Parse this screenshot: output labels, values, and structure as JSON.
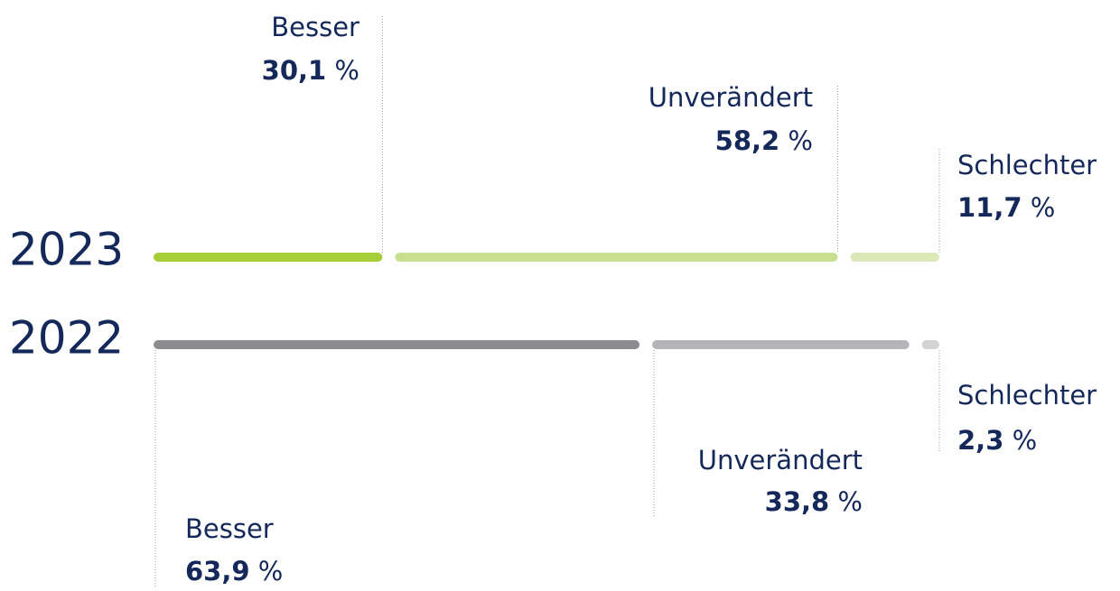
{
  "chart_data": {
    "type": "stacked-bar",
    "categories": [
      "2023",
      "2022"
    ],
    "series": [
      {
        "name": "Besser",
        "colors": [
          "#a6ce39",
          "#8c8c8f"
        ],
        "values": [
          30.1,
          63.9
        ],
        "value_labels": [
          "30,1 %",
          "63,9 %"
        ]
      },
      {
        "name": "Unverändert",
        "colors": [
          "#c8df8f",
          "#b5b5b9"
        ],
        "values": [
          58.2,
          33.8
        ],
        "value_labels": [
          "58,2 %",
          "33,8 %"
        ]
      },
      {
        "name": "Schlechter",
        "colors": [
          "#dbe9b8",
          "#d3d3d6"
        ],
        "values": [
          11.7,
          2.3
        ],
        "value_labels": [
          "11,7 %",
          "2,3 %"
        ]
      }
    ]
  }
}
